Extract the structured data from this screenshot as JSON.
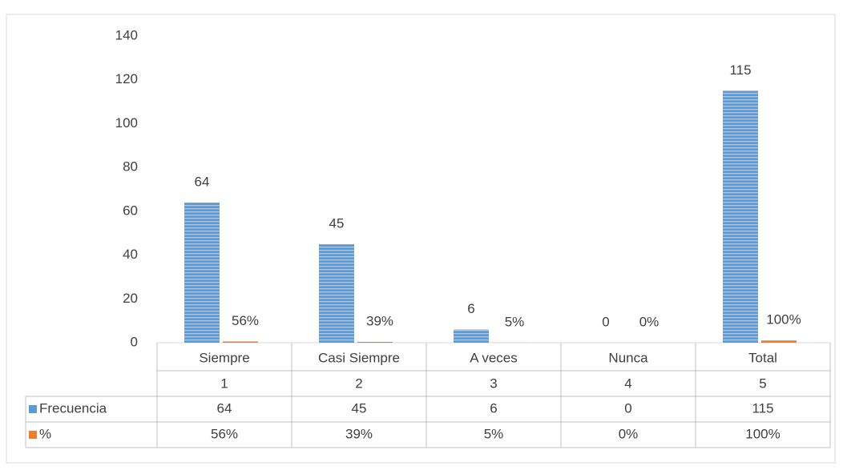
{
  "chart_data": {
    "type": "bar",
    "categories": [
      "Siempre",
      "Casi Siempre",
      "A veces",
      "Nunca",
      "Total"
    ],
    "category_numbers": [
      1,
      2,
      3,
      4,
      5
    ],
    "series": [
      {
        "name": "Frecuencia",
        "color": "#5b9bd5",
        "values": [
          64,
          45,
          6,
          0,
          115
        ]
      },
      {
        "name": "%",
        "color": "#ed7d31",
        "values": [
          0.56,
          0.39,
          0.05,
          0,
          1
        ],
        "value_labels": [
          "56%",
          "39%",
          "5%",
          "0%",
          "100%"
        ]
      }
    ],
    "ylim": [
      0,
      140
    ],
    "yticks": [
      0,
      20,
      40,
      60,
      80,
      100,
      120,
      140
    ],
    "data_table": true
  }
}
